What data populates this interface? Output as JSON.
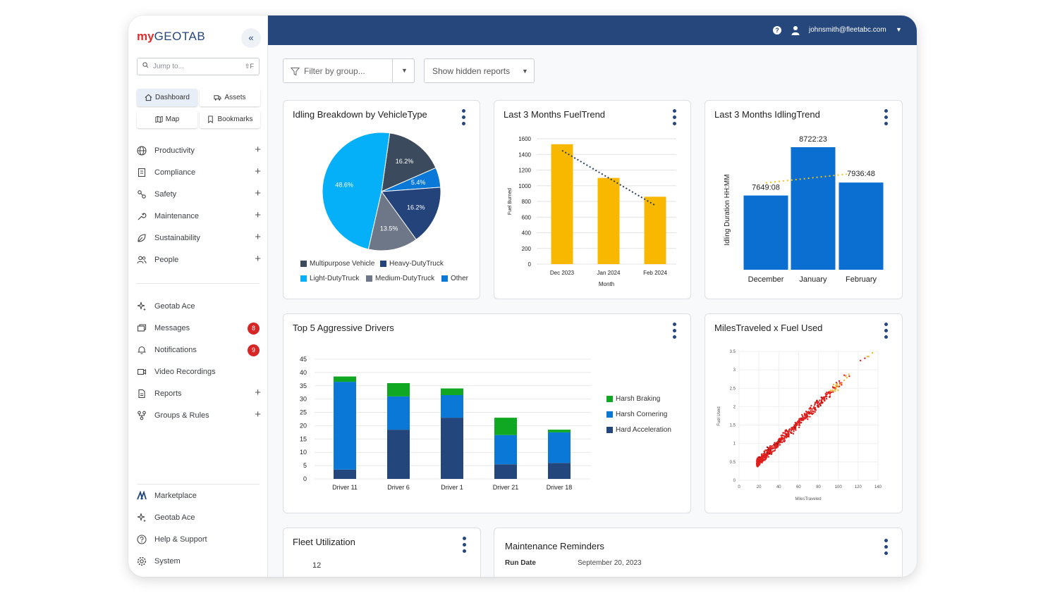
{
  "app": {
    "logo_my": "my",
    "logo_rest": "GEOTAB"
  },
  "sidebar": {
    "collapse_glyph": "«",
    "search": {
      "placeholder": "Jump to...",
      "shortcut": "⇧F"
    },
    "quick": [
      {
        "label": "Dashboard",
        "icon": "home-icon",
        "active": true
      },
      {
        "label": "Assets",
        "icon": "truck-icon",
        "active": false
      },
      {
        "label": "Map",
        "icon": "map-icon",
        "active": false
      },
      {
        "label": "Bookmarks",
        "icon": "bookmark-icon",
        "active": false
      }
    ],
    "main_items": [
      {
        "label": "Productivity",
        "icon": "globe-icon",
        "expandable": true
      },
      {
        "label": "Compliance",
        "icon": "clipboard-icon",
        "expandable": true
      },
      {
        "label": "Safety",
        "icon": "safety-icon",
        "expandable": true
      },
      {
        "label": "Maintenance",
        "icon": "wrench-icon",
        "expandable": true
      },
      {
        "label": "Sustainability",
        "icon": "leaf-icon",
        "expandable": true
      },
      {
        "label": "People",
        "icon": "people-icon",
        "expandable": true
      }
    ],
    "secondary_items": [
      {
        "label": "Geotab Ace",
        "icon": "sparkle-icon"
      },
      {
        "label": "Messages",
        "icon": "messages-icon",
        "badge": "8"
      },
      {
        "label": "Notifications",
        "icon": "bell-icon",
        "badge": "9"
      },
      {
        "label": "Video Recordings",
        "icon": "video-icon"
      },
      {
        "label": "Reports",
        "icon": "report-icon",
        "expandable": true
      },
      {
        "label": "Groups & Rules",
        "icon": "groups-icon",
        "expandable": true
      }
    ],
    "bottom_items": [
      {
        "label": "Marketplace",
        "icon": "marketplace-icon"
      },
      {
        "label": "Geotab Ace",
        "icon": "sparkle-icon"
      },
      {
        "label": "Help & Support",
        "icon": "help-icon"
      },
      {
        "label": "System",
        "icon": "gear-icon"
      }
    ]
  },
  "topbar": {
    "email": "johnsmith@fleetabc.com"
  },
  "toolbar": {
    "filter_placeholder": "Filter by group...",
    "hidden_reports": "Show hidden reports"
  },
  "cards": {
    "idling_breakdown": {
      "title": "Idling Breakdown by VehicleType",
      "chart_data": {
        "type": "pie",
        "slices": [
          {
            "label": "Multipurpose Vehicle",
            "value": 16.2,
            "display": "16.2%",
            "color": "#3b4a5c"
          },
          {
            "label": "Other",
            "value": 5.4,
            "display": "5.4%",
            "color": "#0a78d6"
          },
          {
            "label": "Heavy-DutyTruck",
            "value": 16.2,
            "display": "16.2%",
            "color": "#24437a"
          },
          {
            "label": "Medium-DutyTruck",
            "value": 13.5,
            "display": "13.5%",
            "color": "#6e7787"
          },
          {
            "label": "Light-DutyTruck",
            "value": 48.6,
            "display": "48.6%",
            "color": "#06b0f8"
          }
        ],
        "legend": [
          "Multipurpose Vehicle",
          "Heavy-DutyTruck",
          "Light-DutyTruck",
          "Medium-DutyTruck",
          "Other"
        ]
      }
    },
    "fuel_trend": {
      "title": "Last 3 Months FuelTrend",
      "chart_data": {
        "type": "bar",
        "categories": [
          "Dec 2023",
          "Jan 2024",
          "Feb 2024"
        ],
        "values": [
          1530,
          1100,
          860
        ],
        "trend": [
          1450,
          1100,
          750
        ],
        "ylim": [
          0,
          1600
        ],
        "yticks": [
          0,
          200,
          400,
          600,
          800,
          1000,
          1200,
          1400,
          1600
        ],
        "xlabel": "Month",
        "ylabel": "Fuel Burned",
        "color": "#f9b800"
      }
    },
    "idling_trend": {
      "title": "Last 3 Months IdlingTrend",
      "chart_data": {
        "type": "bar",
        "categories": [
          "December",
          "January",
          "February"
        ],
        "values": [
          7649.13,
          8722.38,
          7936.8
        ],
        "labels": [
          "7649:08",
          "8722:23",
          "7936:48"
        ],
        "ylabel": "Idling Duration HH:MM",
        "color": "#0a6fd1"
      }
    },
    "aggressive": {
      "title": "Top 5 Aggressive Drivers",
      "chart_data": {
        "type": "bar",
        "stacked": true,
        "categories": [
          "Driver 11",
          "Driver 6",
          "Driver 1",
          "Driver 21",
          "Driver 18"
        ],
        "series": [
          {
            "name": "Hard Acceleration",
            "color": "#23467d",
            "values": [
              3.5,
              18.5,
              23,
              5.5,
              6
            ]
          },
          {
            "name": "Harsh Cornering",
            "color": "#0a78d6",
            "values": [
              33,
              12.5,
              8.5,
              11,
              11.5
            ]
          },
          {
            "name": "Harsh Braking",
            "color": "#10a823",
            "values": [
              2,
              5,
              2.5,
              6.5,
              1
            ]
          }
        ],
        "ylim": [
          0,
          45
        ],
        "yticks": [
          0,
          5,
          10,
          15,
          20,
          25,
          30,
          35,
          40,
          45
        ],
        "legend": [
          "Harsh Braking",
          "Harsh Cornering",
          "Hard Acceleration"
        ]
      }
    },
    "miles_fuel": {
      "title": "MilesTraveled x Fuel Used",
      "chart_data": {
        "type": "scatter",
        "xlabel": "MilesTraveled",
        "ylabel": "Fuel Used",
        "xlim": [
          0,
          140
        ],
        "ylim": [
          0,
          3.5
        ],
        "xticks": [
          0,
          20,
          40,
          60,
          80,
          100,
          120,
          140
        ],
        "yticks": [
          0,
          0.5,
          1,
          1.5,
          2,
          2.5,
          3,
          3.5
        ],
        "ytick_labels": [
          "0",
          "0.5",
          "1",
          "1.5",
          "2",
          "2.5",
          "3",
          "3.5"
        ],
        "trend": "positive linear, fuel ≈ 0.025 × miles",
        "color": "#e0201e"
      }
    },
    "fleet_util": {
      "title": "Fleet Utilization",
      "value": "12"
    },
    "maintenance": {
      "title": "Maintenance Reminders",
      "run_date_label": "Run Date",
      "run_date_value": "September 20, 2023"
    }
  }
}
